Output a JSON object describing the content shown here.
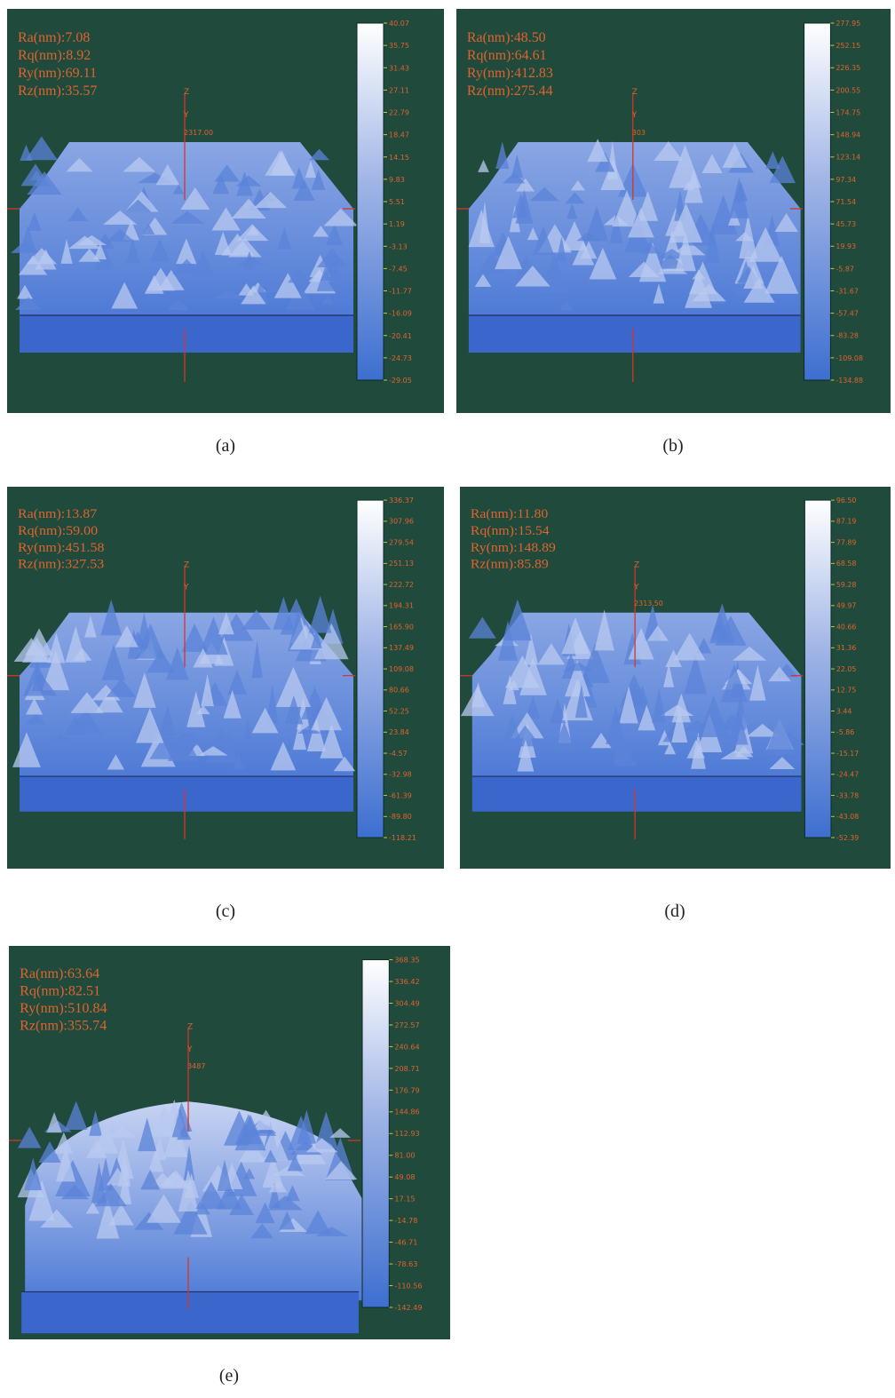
{
  "panels": [
    {
      "label": "(a)",
      "stats": [
        "Ra(nm):7.08",
        "Rq(nm):8.92",
        "Ry(nm):69.11",
        "Rz(nm):35.57"
      ],
      "axis_z": "Z",
      "axis_y": "Y",
      "marker": "2317.00",
      "scale": [
        "40.07",
        "35.75",
        "31.43",
        "27.11",
        "22.79",
        "18.47",
        "14.15",
        "9.83",
        "5.51",
        "1.19",
        "-3.13",
        "-7.45",
        "-11.77",
        "-16.09",
        "-20.41",
        "-24.73",
        "-29.05"
      ]
    },
    {
      "label": "(b)",
      "stats": [
        "Ra(nm):48.50",
        "Rq(nm):64.61",
        "Ry(nm):412.83",
        "Rz(nm):275.44"
      ],
      "axis_z": "Z",
      "axis_y": "Y",
      "marker": "303",
      "scale": [
        "277.95",
        "252.15",
        "226.35",
        "200.55",
        "174.75",
        "148.94",
        "123.14",
        "97.34",
        "71.54",
        "45.73",
        "19.93",
        "-5.87",
        "-31.67",
        "-57.47",
        "-83.28",
        "-109.08",
        "-134.88"
      ]
    },
    {
      "label": "(c)",
      "stats": [
        "Ra(nm):13.87",
        "Rq(nm):59.00",
        "Ry(nm):451.58",
        "Rz(nm):327.53"
      ],
      "axis_z": "Z",
      "axis_y": "Y",
      "scale": [
        "336.37",
        "307.96",
        "279.54",
        "251.13",
        "222.72",
        "194.31",
        "165.90",
        "137.49",
        "109.08",
        "80.66",
        "52.25",
        "23.84",
        "-4.57",
        "-32.98",
        "-61.39",
        "-89.80",
        "-118.21"
      ]
    },
    {
      "label": "(d)",
      "stats": [
        "Ra(nm):11.80",
        "Rq(nm):15.54",
        "Ry(nm):148.89",
        "Rz(nm):85.89"
      ],
      "axis_z": "Z",
      "axis_y": "Y",
      "marker": "2313.50",
      "scale": [
        "96.50",
        "87.19",
        "77.89",
        "68.58",
        "59.28",
        "49.97",
        "40.66",
        "31.36",
        "22.05",
        "12.75",
        "3.44",
        "-5.86",
        "-15.17",
        "-24.47",
        "-33.78",
        "-43.08",
        "-52.39"
      ]
    },
    {
      "label": "(e)",
      "stats": [
        "Ra(nm):63.64",
        "Rq(nm):82.51",
        "Ry(nm):510.84",
        "Rz(nm):355.74"
      ],
      "axis_z": "Z",
      "axis_y": "Y",
      "marker": "3487",
      "scale": [
        "368.35",
        "336.42",
        "304.49",
        "272.57",
        "240.64",
        "208.71",
        "176.79",
        "144.86",
        "112.93",
        "81.00",
        "49.08",
        "17.15",
        "-14.78",
        "-46.71",
        "-78.63",
        "-110.56",
        "-142.49"
      ]
    }
  ]
}
